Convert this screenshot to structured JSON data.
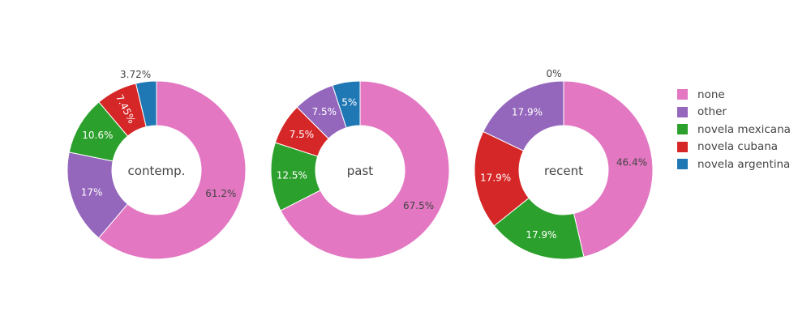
{
  "chart_data": {
    "type": "pie",
    "hole": true,
    "legend_position": "right",
    "colors": {
      "none": "#e377c2",
      "other": "#9467bd",
      "novela mexicana": "#2ca02c",
      "novela cubana": "#d62728",
      "novela argentina": "#1f77b4"
    },
    "legend": [
      "none",
      "other",
      "novela mexicana",
      "novela cubana",
      "novela argentina"
    ],
    "panels": [
      {
        "title": "contemp.",
        "slices": [
          {
            "label": "none",
            "value": 61.2,
            "text": "61.2%"
          },
          {
            "label": "other",
            "value": 17.0,
            "text": "17%"
          },
          {
            "label": "novela mexicana",
            "value": 10.6,
            "text": "10.6%"
          },
          {
            "label": "novela cubana",
            "value": 7.45,
            "text": "7.45%"
          },
          {
            "label": "novela argentina",
            "value": 3.72,
            "text": "3.72%"
          }
        ]
      },
      {
        "title": "past",
        "slices": [
          {
            "label": "none",
            "value": 67.5,
            "text": "67.5%"
          },
          {
            "label": "novela mexicana",
            "value": 12.5,
            "text": "12.5%"
          },
          {
            "label": "novela cubana",
            "value": 7.5,
            "text": "7.5%"
          },
          {
            "label": "other",
            "value": 7.5,
            "text": "7.5%"
          },
          {
            "label": "novela argentina",
            "value": 5.0,
            "text": "5%"
          }
        ]
      },
      {
        "title": "recent",
        "slices": [
          {
            "label": "none",
            "value": 46.4,
            "text": "46.4%"
          },
          {
            "label": "novela mexicana",
            "value": 17.9,
            "text": "17.9%"
          },
          {
            "label": "novela cubana",
            "value": 17.9,
            "text": "17.9%"
          },
          {
            "label": "other",
            "value": 17.9,
            "text": "17.9%"
          },
          {
            "label": "novela argentina",
            "value": 0,
            "text": "0%"
          }
        ]
      }
    ]
  }
}
